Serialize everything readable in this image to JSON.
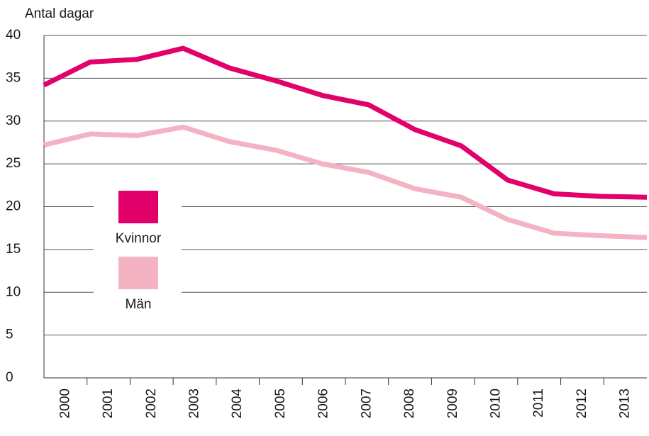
{
  "chart_data": {
    "type": "line",
    "y_label": "Antal dagar",
    "categories": [
      "2000",
      "2001",
      "2002",
      "2003",
      "2004",
      "2005",
      "2006",
      "2007",
      "2008",
      "2009",
      "2010",
      "2011",
      "2012",
      "2013"
    ],
    "series": [
      {
        "name": "Kvinnor",
        "color": "#e2006a",
        "values": [
          34.2,
          36.9,
          37.2,
          38.5,
          36.2,
          34.7,
          33.0,
          31.9,
          29.0,
          27.1,
          23.1,
          21.5,
          21.2,
          21.1
        ]
      },
      {
        "name": "Män",
        "color": "#f4b3c2",
        "values": [
          27.2,
          28.5,
          28.3,
          29.3,
          27.6,
          26.6,
          25.0,
          24.0,
          22.1,
          21.1,
          18.5,
          16.9,
          16.6,
          16.4
        ]
      }
    ],
    "ylim": [
      0,
      40
    ],
    "yticks": [
      0,
      5,
      10,
      15,
      20,
      25,
      30,
      35,
      40
    ],
    "grid": true
  }
}
